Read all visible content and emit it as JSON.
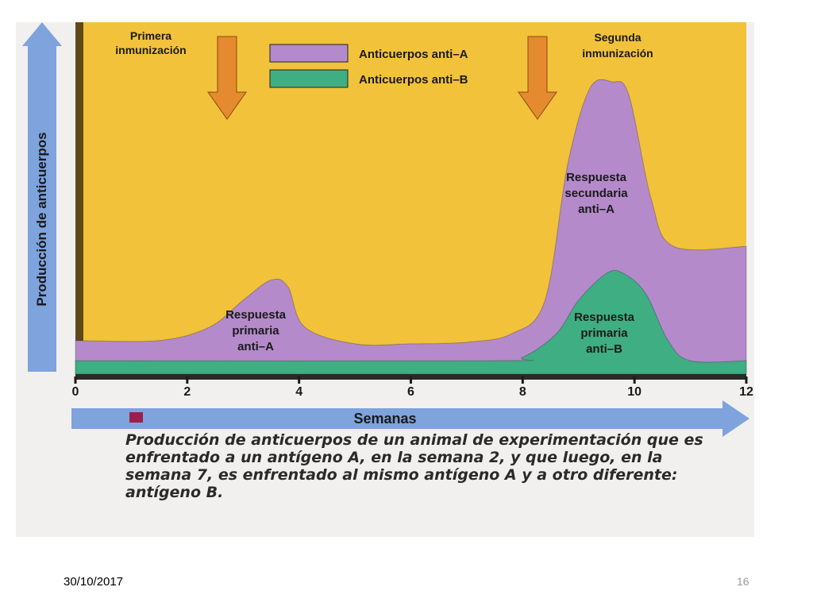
{
  "slide": {
    "date": "30/10/2017",
    "page_number": "16"
  },
  "caption": "Producción de anticuerpos de un animal de experimentación que es enfrentado a un antígeno A, en la semana 2, y que luego, en la semana 7, es enfrentado al mismo antígeno A y a otro diferente: antígeno B.",
  "colors": {
    "background": "#f2c23a",
    "anti_a": "#b48acb",
    "anti_b": "#3fae82",
    "arrow_orange": "#e58a2e",
    "axis_blue": "#7ea3dd",
    "caption_marker": "#9b1f4e"
  },
  "chart_data": {
    "type": "area",
    "xlabel": "Semanas",
    "ylabel": "Producción de anticuerpos",
    "xlim": [
      0,
      12
    ],
    "x_ticks": [
      0,
      2,
      4,
      6,
      8,
      10,
      12
    ],
    "x_tick_labels": [
      "0",
      "2",
      "4",
      "6",
      "8",
      "10",
      "12"
    ],
    "ylim": [
      0,
      100
    ],
    "grid": false,
    "legend_position": "top-center",
    "series": [
      {
        "name": "Anticuerpos anti–A",
        "color": "#b48acb",
        "x": [
          0,
          1.5,
          2.4,
          3.0,
          3.5,
          3.8,
          4.1,
          5.0,
          6.0,
          7.0,
          7.8,
          8.4,
          8.8,
          9.2,
          9.6,
          9.9,
          10.3,
          10.7,
          12
        ],
        "y": [
          10,
          10,
          14,
          22,
          28,
          26,
          14,
          9,
          9,
          9.5,
          12,
          22,
          62,
          85,
          87,
          83,
          52,
          38,
          38
        ]
      },
      {
        "name": "Anticuerpos anti–B",
        "color": "#3fae82",
        "x": [
          0,
          7.5,
          8.0,
          8.6,
          9.0,
          9.5,
          9.8,
          10.2,
          10.6,
          11.0,
          12
        ],
        "y": [
          4,
          4,
          5,
          12,
          22,
          30,
          30,
          24,
          10,
          4,
          4
        ]
      }
    ],
    "annotations": [
      {
        "text": "Primera inmunización",
        "x": 2
      },
      {
        "text": "Segunda inmunización",
        "x": 7
      },
      {
        "text": "Respuesta primaria anti–A",
        "x": 3
      },
      {
        "text": "Respuesta secundaria anti–A",
        "x": 9.6
      },
      {
        "text": "Respuesta primaria anti–B",
        "x": 9.7
      }
    ]
  }
}
